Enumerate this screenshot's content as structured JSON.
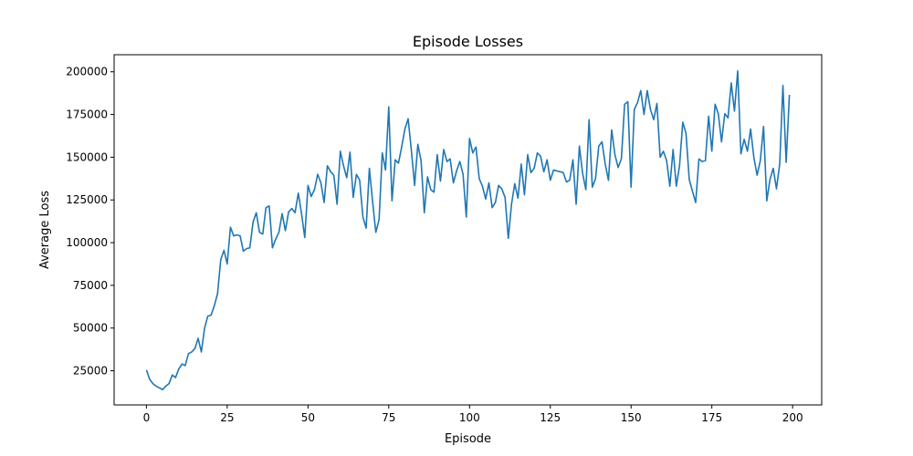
{
  "chart_data": {
    "type": "line",
    "title": "Episode Losses",
    "xlabel": "Episode",
    "ylabel": "Average Loss",
    "xlim": [
      -10,
      209
    ],
    "ylim": [
      5000,
      210000
    ],
    "xticks": [
      0,
      25,
      50,
      75,
      100,
      125,
      150,
      175,
      200
    ],
    "yticks": [
      25000,
      50000,
      75000,
      100000,
      125000,
      150000,
      175000,
      200000
    ],
    "xtick_labels": [
      "0",
      "25",
      "50",
      "75",
      "100",
      "125",
      "150",
      "175",
      "200"
    ],
    "ytick_labels": [
      "25000",
      "50000",
      "75000",
      "100000",
      "125000",
      "150000",
      "175000",
      "200000"
    ],
    "grid": false,
    "series": [
      {
        "color": "#1f77b4",
        "x": [
          0,
          1,
          2,
          3,
          4,
          5,
          6,
          7,
          8,
          9,
          10,
          11,
          12,
          13,
          14,
          15,
          16,
          17,
          18,
          19,
          20,
          21,
          22,
          23,
          24,
          25,
          26,
          27,
          28,
          29,
          30,
          31,
          32,
          33,
          34,
          35,
          36,
          37,
          38,
          39,
          40,
          41,
          42,
          43,
          44,
          45,
          46,
          47,
          48,
          49,
          50,
          51,
          52,
          53,
          54,
          55,
          56,
          57,
          58,
          59,
          60,
          61,
          62,
          63,
          64,
          65,
          66,
          67,
          68,
          69,
          70,
          71,
          72,
          73,
          74,
          75,
          76,
          77,
          78,
          79,
          80,
          81,
          82,
          83,
          84,
          85,
          86,
          87,
          88,
          89,
          90,
          91,
          92,
          93,
          94,
          95,
          96,
          97,
          98,
          99,
          100,
          101,
          102,
          103,
          104,
          105,
          106,
          107,
          108,
          109,
          110,
          111,
          112,
          113,
          114,
          115,
          116,
          117,
          118,
          119,
          120,
          121,
          122,
          123,
          124,
          125,
          126,
          127,
          128,
          129,
          130,
          131,
          132,
          133,
          134,
          135,
          136,
          137,
          138,
          139,
          140,
          141,
          142,
          143,
          144,
          145,
          146,
          147,
          148,
          149,
          150,
          151,
          152,
          153,
          154,
          155,
          156,
          157,
          158,
          159,
          160,
          161,
          162,
          163,
          164,
          165,
          166,
          167,
          168,
          169,
          170,
          171,
          172,
          173,
          174,
          175,
          176,
          177,
          178,
          179,
          180,
          181,
          182,
          183,
          184,
          185,
          186,
          187,
          188,
          189,
          190,
          191,
          192,
          193,
          194,
          195,
          196,
          197,
          198,
          199
        ],
        "values": [
          25500,
          20000,
          17500,
          16000,
          15000,
          14000,
          16000,
          17500,
          22500,
          21000,
          26000,
          29000,
          28000,
          35000,
          36000,
          38000,
          44000,
          36000,
          50000,
          57000,
          57500,
          63000,
          70000,
          90000,
          95500,
          87500,
          109000,
          104000,
          104500,
          104000,
          95000,
          96500,
          97000,
          112000,
          117500,
          106000,
          105000,
          120500,
          121500,
          97000,
          102000,
          106000,
          117000,
          107000,
          118000,
          120000,
          117500,
          129000,
          117000,
          103000,
          133500,
          127000,
          131000,
          140000,
          135000,
          123500,
          145000,
          141500,
          139500,
          122500,
          153500,
          145000,
          138000,
          153000,
          126500,
          140000,
          136500,
          115000,
          108500,
          143500,
          124000,
          106000,
          113500,
          152500,
          142500,
          179500,
          124500,
          148500,
          146500,
          156000,
          166500,
          172500,
          154000,
          133500,
          157500,
          148000,
          117500,
          138500,
          131000,
          129500,
          151500,
          136000,
          154500,
          147500,
          149000,
          135000,
          142000,
          147500,
          140000,
          115000,
          161000,
          152500,
          156000,
          137500,
          133000,
          125500,
          135000,
          120500,
          123500,
          133500,
          131500,
          126500,
          102500,
          122500,
          134500,
          126000,
          146000,
          128000,
          151500,
          141000,
          143500,
          152500,
          150500,
          141500,
          148500,
          136500,
          142500,
          142000,
          141500,
          141000,
          135500,
          136500,
          148500,
          122500,
          156500,
          140500,
          131000,
          172000,
          132500,
          137500,
          156500,
          159000,
          146000,
          136500,
          166000,
          151500,
          144000,
          149000,
          181000,
          182500,
          132500,
          178000,
          182000,
          189000,
          175000,
          189000,
          178000,
          172000,
          181500,
          150000,
          153500,
          148000,
          133000,
          154500,
          133000,
          145000,
          170500,
          164000,
          137000,
          130000,
          123500,
          149000,
          147500,
          148000,
          174000,
          153500,
          181000,
          175500,
          159000,
          175500,
          173000,
          193500,
          177000,
          200500,
          152000,
          160500,
          153500,
          166500,
          150000,
          139500,
          148000,
          168000,
          124500,
          137000,
          143500,
          131500,
          146000,
          192000,
          147000,
          186500
        ]
      }
    ]
  }
}
